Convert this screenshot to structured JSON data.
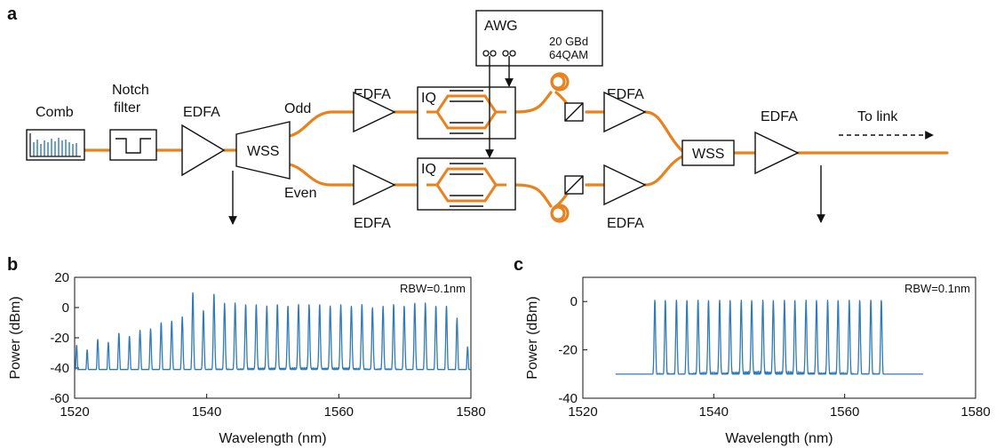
{
  "panels": {
    "a": "a",
    "b": "b",
    "c": "c"
  },
  "diagram": {
    "comb": "Comb",
    "notch_line1": "Notch",
    "notch_line2": "filter",
    "edfa": "EDFA",
    "wss": "WSS",
    "odd": "Odd",
    "even": "Even",
    "iq": "IQ",
    "awg": "AWG",
    "awg_rate": "20 GBd",
    "awg_format": "64QAM",
    "to_link": "To link"
  },
  "colors": {
    "fiber": "#E8821E",
    "trace": "#2F7AB8"
  },
  "chart_data": [
    {
      "type": "line",
      "panel": "b",
      "annotation": "RBW=0.1nm",
      "xlabel": "Wavelength (nm)",
      "ylabel": "Power (dBm)",
      "xlim": [
        1520,
        1580
      ],
      "ylim": [
        -60,
        20
      ],
      "xticks": [
        1520,
        1540,
        1560,
        1580
      ],
      "yticks": [
        20,
        0,
        -20,
        -40,
        -60
      ],
      "floor": [
        [
          1520,
          -47
        ],
        [
          1525,
          -45
        ],
        [
          1530,
          -44
        ],
        [
          1540,
          -42
        ],
        [
          1550,
          -41
        ],
        [
          1560,
          -41
        ],
        [
          1570,
          -42
        ],
        [
          1575,
          -43
        ],
        [
          1580,
          -46
        ]
      ],
      "peaks_x": [
        1520.3,
        1521.9,
        1523.5,
        1525.1,
        1526.7,
        1528.3,
        1529.9,
        1531.5,
        1533.1,
        1534.7,
        1536.3,
        1537.9,
        1539.5,
        1541.1,
        1542.7,
        1544.3,
        1545.9,
        1547.5,
        1549.1,
        1550.7,
        1552.3,
        1553.9,
        1555.5,
        1557.1,
        1558.7,
        1560.3,
        1561.9,
        1563.5,
        1565.1,
        1566.7,
        1568.3,
        1569.9,
        1571.5,
        1573.1,
        1574.7,
        1576.3,
        1577.9,
        1579.5
      ],
      "peaks_y": [
        -25,
        -28,
        -21,
        -23,
        -17,
        -19,
        -15,
        -14,
        -10,
        -9,
        -6,
        10,
        -2,
        9,
        3,
        3,
        2,
        2,
        1,
        2,
        1,
        2,
        2,
        2,
        1,
        2,
        1,
        2,
        0,
        1,
        2,
        1,
        3,
        3,
        1,
        1,
        -7,
        -26
      ]
    },
    {
      "type": "line",
      "panel": "c",
      "annotation": "RBW=0.1nm",
      "xlabel": "Wavelength (nm)",
      "ylabel": "Power (dBm)",
      "xlim": [
        1520,
        1580
      ],
      "ylim": [
        -40,
        10
      ],
      "xticks": [
        1520,
        1540,
        1560,
        1580
      ],
      "yticks": [
        0,
        -20,
        -40
      ],
      "floor": [
        [
          1525,
          -40
        ],
        [
          1527,
          -34
        ],
        [
          1529,
          -33
        ],
        [
          1530,
          -32
        ],
        [
          1531,
          -31
        ],
        [
          1548,
          -30
        ],
        [
          1566,
          -31
        ],
        [
          1566.5,
          -34
        ],
        [
          1572,
          -40
        ]
      ],
      "peaks_x": [
        1531.0,
        1532.6,
        1534.3,
        1535.9,
        1537.6,
        1539.2,
        1540.9,
        1542.5,
        1544.2,
        1545.8,
        1547.5,
        1549.1,
        1550.8,
        1552.4,
        1554.1,
        1555.7,
        1557.4,
        1559.0,
        1560.7,
        1562.3,
        1564.0,
        1565.6
      ],
      "peaks_y": [
        0.5,
        0.5,
        0.5,
        0.5,
        0.5,
        0.5,
        0.5,
        0.5,
        0.5,
        0.5,
        0.5,
        0.5,
        0.5,
        0.5,
        0.5,
        0.5,
        0.5,
        0.5,
        0.5,
        0.5,
        0.5,
        0.5
      ]
    }
  ]
}
